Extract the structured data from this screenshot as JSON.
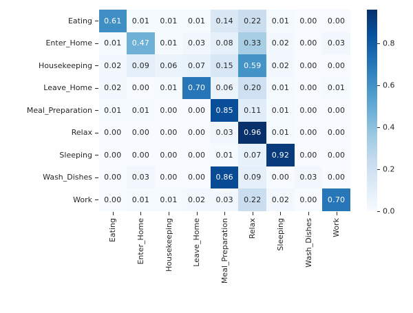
{
  "chart_data": {
    "type": "heatmap",
    "rows": [
      "Eating",
      "Enter_Home",
      "Housekeeping",
      "Leave_Home",
      "Meal_Preparation",
      "Relax",
      "Sleeping",
      "Wash_Dishes",
      "Work"
    ],
    "columns": [
      "Eating",
      "Enter_Home",
      "Housekeeping",
      "Leave_Home",
      "Meal_Preparation",
      "Relax",
      "Sleeping",
      "Wash_Dishes",
      "Work"
    ],
    "matrix": [
      [
        0.61,
        0.01,
        0.01,
        0.01,
        0.14,
        0.22,
        0.01,
        0.0,
        0.0
      ],
      [
        0.01,
        0.47,
        0.01,
        0.03,
        0.08,
        0.33,
        0.02,
        0.0,
        0.03
      ],
      [
        0.02,
        0.09,
        0.06,
        0.07,
        0.15,
        0.59,
        0.02,
        0.0,
        0.0
      ],
      [
        0.02,
        0.0,
        0.01,
        0.7,
        0.06,
        0.2,
        0.01,
        0.0,
        0.01
      ],
      [
        0.01,
        0.01,
        0.0,
        0.0,
        0.85,
        0.11,
        0.01,
        0.0,
        0.0
      ],
      [
        0.0,
        0.0,
        0.0,
        0.0,
        0.03,
        0.96,
        0.01,
        0.0,
        0.0
      ],
      [
        0.0,
        0.0,
        0.0,
        0.0,
        0.01,
        0.07,
        0.92,
        0.0,
        0.0
      ],
      [
        0.0,
        0.03,
        0.0,
        0.0,
        0.86,
        0.09,
        0.0,
        0.03,
        0.0
      ],
      [
        0.0,
        0.01,
        0.01,
        0.02,
        0.03,
        0.22,
        0.02,
        0.0,
        0.7
      ]
    ],
    "vmin": 0.0,
    "vmax": 0.96,
    "value_decimals": 2,
    "annotations": "cell values",
    "grid": false,
    "x_tick_rotation": 90,
    "colorbar": {
      "position": "right",
      "tick_labels": [
        "0.8",
        "0.6",
        "0.4",
        "0.2",
        "0.0"
      ],
      "tick_values": [
        0.8,
        0.6,
        0.4,
        0.2,
        0.0
      ]
    }
  },
  "colors": {
    "background": "#ffffff",
    "colormap": "Blues",
    "colormap_stops": [
      {
        "t": 0.0,
        "rgb": [
          247,
          251,
          255
        ]
      },
      {
        "t": 0.125,
        "rgb": [
          222,
          235,
          247
        ]
      },
      {
        "t": 0.25,
        "rgb": [
          198,
          219,
          239
        ]
      },
      {
        "t": 0.375,
        "rgb": [
          158,
          202,
          225
        ]
      },
      {
        "t": 0.5,
        "rgb": [
          107,
          174,
          214
        ]
      },
      {
        "t": 0.625,
        "rgb": [
          66,
          146,
          198
        ]
      },
      {
        "t": 0.75,
        "rgb": [
          33,
          113,
          181
        ]
      },
      {
        "t": 0.875,
        "rgb": [
          8,
          81,
          156
        ]
      },
      {
        "t": 1.0,
        "rgb": [
          8,
          48,
          107
        ]
      }
    ],
    "annotation_dark": "#262626",
    "annotation_light": "#ffffff",
    "tick_label": "#262626",
    "tick_mark": "#262626"
  }
}
